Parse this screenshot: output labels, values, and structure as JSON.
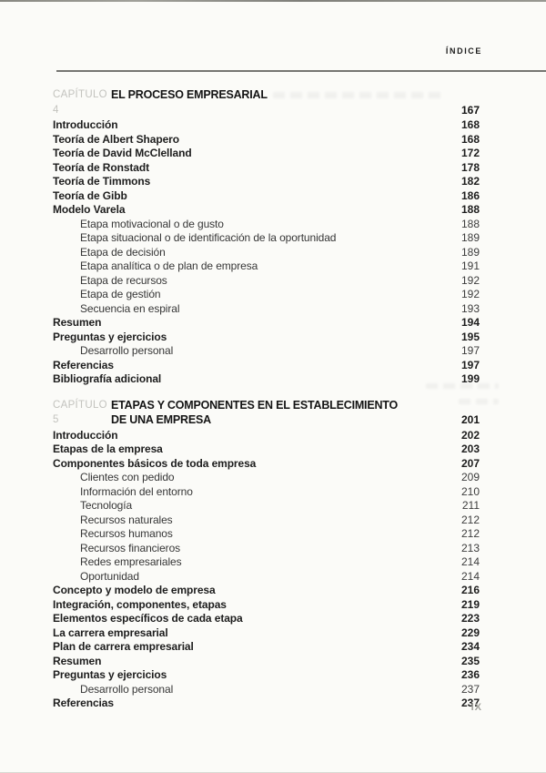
{
  "page": {
    "header_label": "ÍNDICE",
    "footer_page_number": "IX"
  },
  "colors": {
    "paper": "#fbfbf8",
    "ink": "#141414",
    "chapter_label_gray": "#c3c3be",
    "sub_entry_ink": "#363636",
    "rule_gray": "#5e5e5a",
    "footer_gray": "#a2a29d"
  },
  "toc": {
    "chapters": [
      {
        "chapter_label": "CAPÍTULO 4",
        "title_lines": [
          "EL PROCESO EMPRESARIAL"
        ],
        "page": "167",
        "entries": [
          {
            "label": "Introducción",
            "page": "168",
            "level": 1
          },
          {
            "label": "Teoría de Albert Shapero",
            "page": "168",
            "level": 1
          },
          {
            "label": "Teoría de David McClelland",
            "page": "172",
            "level": 1
          },
          {
            "label": "Teoría de Ronstadt",
            "page": "178",
            "level": 1
          },
          {
            "label": "Teoría de Timmons",
            "page": "182",
            "level": 1
          },
          {
            "label": "Teoría de Gibb",
            "page": "186",
            "level": 1
          },
          {
            "label": "Modelo Varela",
            "page": "188",
            "level": 1
          },
          {
            "label": "Etapa motivacional o de gusto",
            "page": "188",
            "level": 2
          },
          {
            "label": "Etapa situacional o de identificación de la oportunidad",
            "page": "189",
            "level": 2
          },
          {
            "label": "Etapa de decisión",
            "page": "189",
            "level": 2
          },
          {
            "label": "Etapa analítica o de plan de empresa",
            "page": "191",
            "level": 2
          },
          {
            "label": "Etapa de recursos",
            "page": "192",
            "level": 2
          },
          {
            "label": "Etapa de gestión",
            "page": "192",
            "level": 2
          },
          {
            "label": "Secuencia en espiral",
            "page": "193",
            "level": 2
          },
          {
            "label": "Resumen",
            "page": "194",
            "level": 1
          },
          {
            "label": "Preguntas y ejercicios",
            "page": "195",
            "level": 1
          },
          {
            "label": "Desarrollo personal",
            "page": "197",
            "level": 2
          },
          {
            "label": "Referencias",
            "page": "197",
            "level": 1
          },
          {
            "label": "Bibliografía adicional",
            "page": "199",
            "level": 1
          }
        ]
      },
      {
        "chapter_label": "CAPÍTULO 5",
        "title_lines": [
          "ETAPAS Y COMPONENTES EN EL ESTABLECIMIENTO",
          "DE UNA EMPRESA"
        ],
        "page": "201",
        "entries": [
          {
            "label": "Introducción",
            "page": "202",
            "level": 1
          },
          {
            "label": "Etapas de la empresa",
            "page": "203",
            "level": 1
          },
          {
            "label": "Componentes básicos de toda empresa",
            "page": "207",
            "level": 1
          },
          {
            "label": "Clientes con pedido",
            "page": "209",
            "level": 2
          },
          {
            "label": "Información del entorno",
            "page": "210",
            "level": 2
          },
          {
            "label": "Tecnología",
            "page": "211",
            "level": 2
          },
          {
            "label": "Recursos naturales",
            "page": "212",
            "level": 2
          },
          {
            "label": "Recursos humanos",
            "page": "212",
            "level": 2
          },
          {
            "label": "Recursos financieros",
            "page": "213",
            "level": 2
          },
          {
            "label": "Redes empresariales",
            "page": "214",
            "level": 2
          },
          {
            "label": "Oportunidad",
            "page": "214",
            "level": 2
          },
          {
            "label": "Concepto y modelo de empresa",
            "page": "216",
            "level": 1
          },
          {
            "label": "Integración, componentes, etapas",
            "page": "219",
            "level": 1
          },
          {
            "label": "Elementos específicos de cada etapa",
            "page": "223",
            "level": 1
          },
          {
            "label": "La carrera empresarial",
            "page": "229",
            "level": 1
          },
          {
            "label": "Plan de carrera empresarial",
            "page": "234",
            "level": 1
          },
          {
            "label": "Resumen",
            "page": "235",
            "level": 1
          },
          {
            "label": "Preguntas y ejercicios",
            "page": "236",
            "level": 1
          },
          {
            "label": "Desarrollo personal",
            "page": "237",
            "level": 2
          },
          {
            "label": "Referencias",
            "page": "237",
            "level": 1
          }
        ]
      }
    ]
  }
}
